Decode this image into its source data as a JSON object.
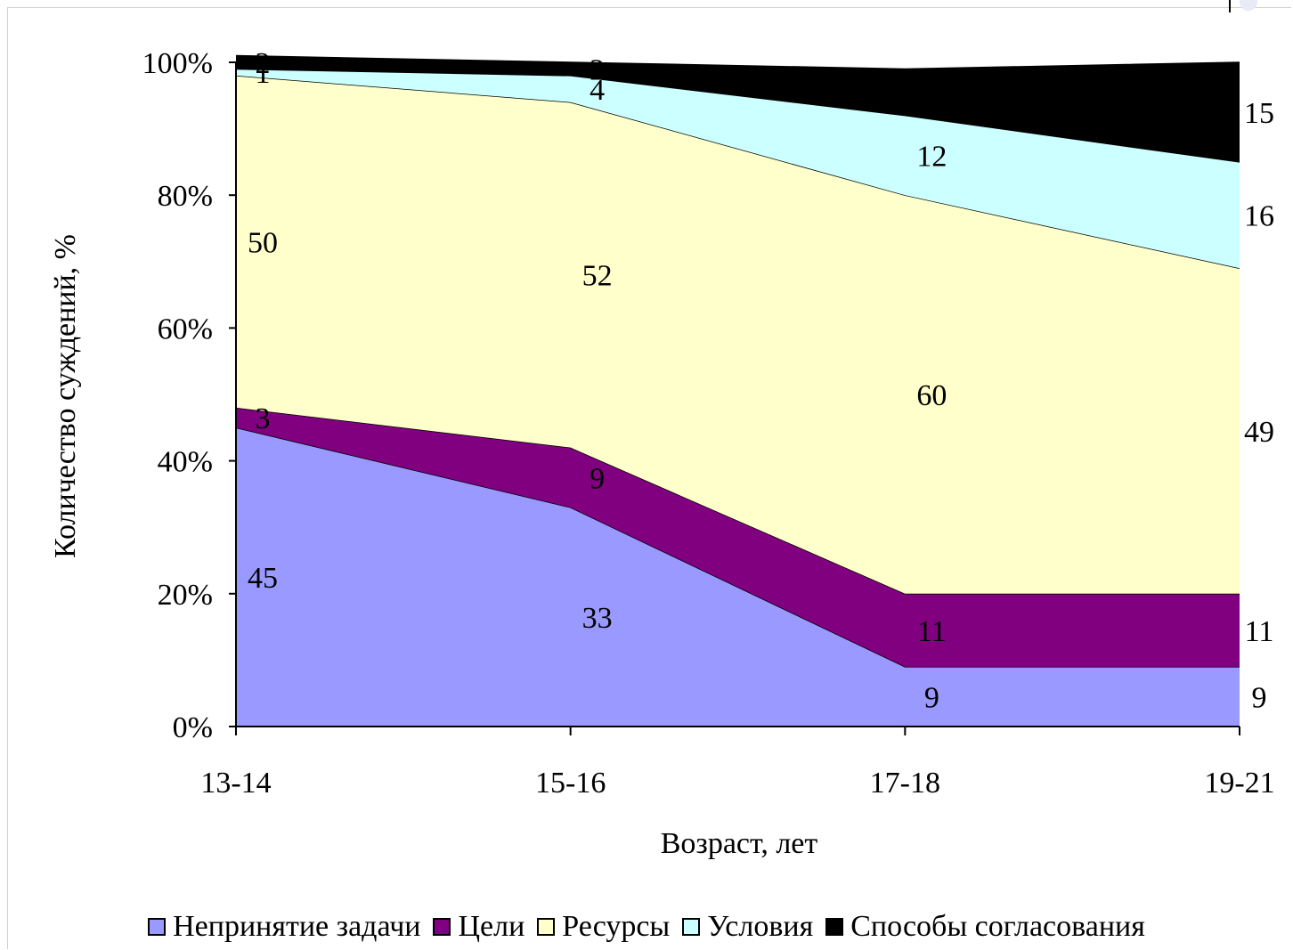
{
  "chart_data": {
    "type": "area",
    "stacked": "percent",
    "xlabel": "Возраст, лет",
    "ylabel": "Количество суждений, %",
    "categories": [
      "13-14",
      "15-16",
      "17-18",
      "19-21"
    ],
    "ytick_labels": [
      "0%",
      "20%",
      "40%",
      "60%",
      "80%",
      "100%"
    ],
    "ylim": [
      0,
      100
    ],
    "grid": false,
    "legend_position": "bottom",
    "series": [
      {
        "name": "Непринятие задачи",
        "color": "#9999ff",
        "values": [
          45,
          33,
          9,
          9
        ],
        "labels": [
          "45",
          "33",
          "9",
          "9"
        ]
      },
      {
        "name": "Цели",
        "color": "#800080",
        "values": [
          3,
          9,
          11,
          11
        ],
        "labels": [
          "3",
          "9",
          "11",
          "11"
        ]
      },
      {
        "name": "Ресурсы",
        "color": "#ffffcc",
        "values": [
          50,
          52,
          60,
          49
        ],
        "labels": [
          "50",
          "52",
          "60",
          "49"
        ]
      },
      {
        "name": "Условия",
        "color": "#ccffff",
        "values": [
          1,
          4,
          12,
          16
        ],
        "labels": [
          "1",
          "4",
          "12",
          "16"
        ]
      },
      {
        "name": "Способы согласования",
        "color": "#000000",
        "values": [
          2,
          2,
          7,
          15
        ],
        "labels": [
          "2",
          "2",
          "7",
          "15"
        ]
      }
    ]
  }
}
